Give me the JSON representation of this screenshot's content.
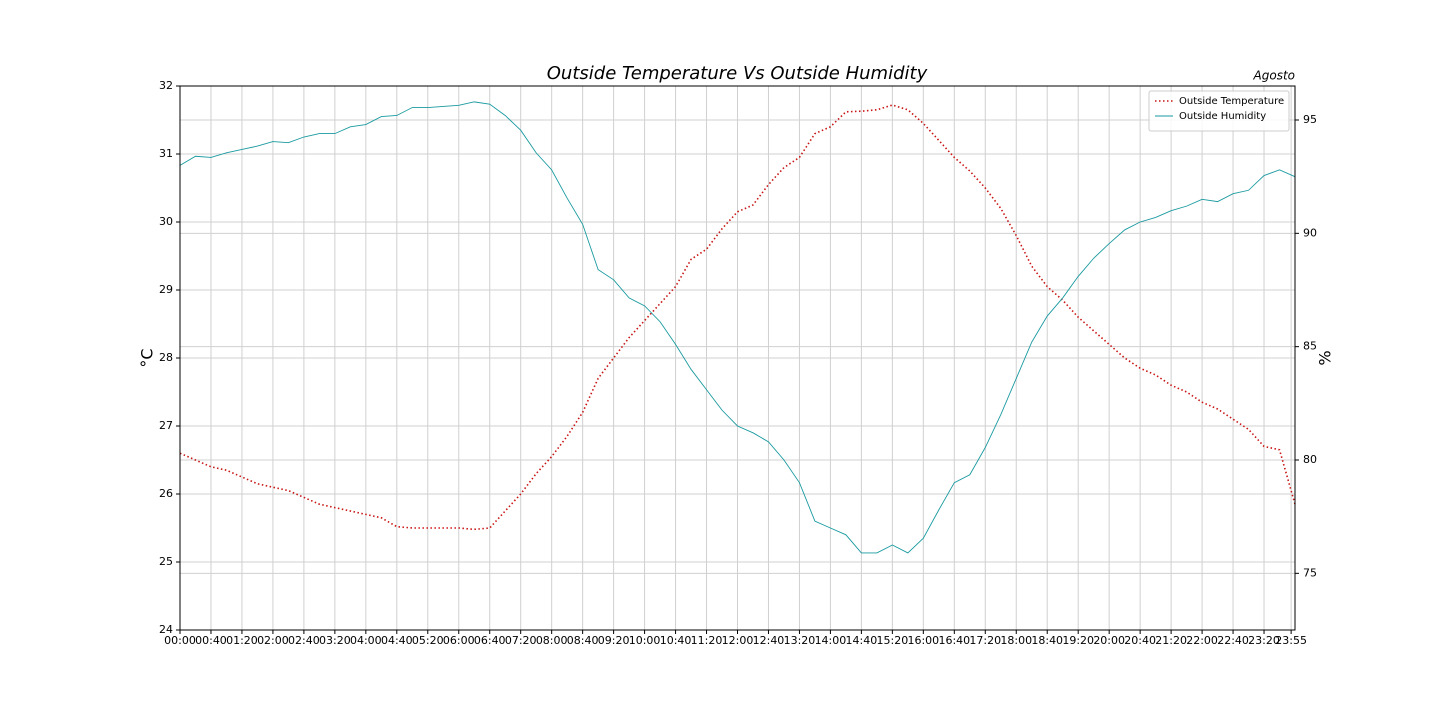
{
  "chart_data": {
    "type": "line",
    "title": "Outside Temperature Vs Outside Humidity",
    "annotation": "Agosto",
    "ylabel": "°C",
    "y2label": "%",
    "x": [
      0,
      20,
      40,
      60,
      80,
      100,
      120,
      140,
      160,
      180,
      200,
      220,
      240,
      260,
      280,
      300,
      320,
      340,
      360,
      380,
      400,
      420,
      440,
      460,
      480,
      500,
      520,
      540,
      560,
      580,
      600,
      620,
      640,
      660,
      680,
      700,
      720,
      740,
      760,
      780,
      800,
      820,
      840,
      860,
      880,
      900,
      920,
      940,
      960,
      980,
      1000,
      1020,
      1040,
      1060,
      1080,
      1100,
      1120,
      1140,
      1160,
      1180,
      1200,
      1220,
      1240,
      1260,
      1280,
      1300,
      1320,
      1340,
      1360,
      1380,
      1400,
      1420,
      1440
    ],
    "series": [
      {
        "name": "Outside Temperature",
        "color": "#c81414",
        "dash": "dotted",
        "values": [
          26.6,
          26.5,
          26.4,
          26.35,
          26.25,
          26.15,
          26.1,
          26.05,
          25.95,
          25.85,
          25.8,
          25.75,
          25.7,
          25.65,
          25.52,
          25.5,
          25.5,
          25.5,
          25.5,
          25.48,
          25.5,
          25.75,
          26.0,
          26.3,
          26.55,
          26.85,
          27.2,
          27.7,
          28.0,
          28.3,
          28.55,
          28.8,
          29.05,
          29.45,
          29.6,
          29.9,
          30.15,
          30.25,
          30.55,
          30.8,
          30.95,
          31.3,
          31.4,
          31.62,
          31.63,
          31.65,
          31.72,
          31.65,
          31.45,
          31.2,
          30.95,
          30.75,
          30.5,
          30.2,
          29.8,
          29.35,
          29.05,
          28.85,
          28.6,
          28.4,
          28.2,
          28.0,
          27.85,
          27.75,
          27.6,
          27.5,
          27.35,
          27.25,
          27.1,
          26.95,
          26.7,
          26.65,
          25.85
        ]
      },
      {
        "name": "Outside Humidity",
        "color": "#1a9aa0",
        "axis": "y2",
        "dash": "solid",
        "values": [
          93.0,
          93.4,
          93.35,
          93.55,
          93.7,
          93.85,
          94.05,
          94.0,
          94.25,
          94.4,
          94.4,
          94.7,
          94.8,
          95.15,
          95.2,
          95.55,
          95.55,
          95.6,
          95.65,
          95.8,
          95.7,
          95.2,
          94.55,
          93.55,
          92.8,
          91.55,
          90.4,
          88.4,
          87.95,
          87.15,
          86.8,
          86.1,
          85.1,
          84.0,
          83.1,
          82.2,
          81.5,
          81.2,
          80.8,
          80.0,
          79.0,
          77.3,
          77.0,
          76.7,
          75.9,
          75.9,
          76.25,
          75.9,
          76.55,
          77.8,
          79.0,
          79.35,
          80.55,
          82.0,
          83.6,
          85.2,
          86.35,
          87.15,
          88.1,
          88.9,
          89.55,
          90.15,
          90.5,
          90.7,
          91.0,
          91.2,
          91.5,
          91.4,
          91.75,
          91.9,
          92.55,
          92.8,
          92.5
        ]
      }
    ],
    "xlim": [
      0,
      1440
    ],
    "xticks": [
      {
        "value": 0,
        "label": "00:00"
      },
      {
        "value": 40,
        "label": "00:40"
      },
      {
        "value": 80,
        "label": "01:20"
      },
      {
        "value": 120,
        "label": "02:00"
      },
      {
        "value": 160,
        "label": "02:40"
      },
      {
        "value": 200,
        "label": "03:20"
      },
      {
        "value": 240,
        "label": "04:00"
      },
      {
        "value": 280,
        "label": "04:40"
      },
      {
        "value": 320,
        "label": "05:20"
      },
      {
        "value": 360,
        "label": "06:00"
      },
      {
        "value": 400,
        "label": "06:40"
      },
      {
        "value": 440,
        "label": "07:20"
      },
      {
        "value": 480,
        "label": "08:00"
      },
      {
        "value": 520,
        "label": "08:40"
      },
      {
        "value": 560,
        "label": "09:20"
      },
      {
        "value": 600,
        "label": "10:00"
      },
      {
        "value": 640,
        "label": "10:40"
      },
      {
        "value": 680,
        "label": "11:20"
      },
      {
        "value": 720,
        "label": "12:00"
      },
      {
        "value": 760,
        "label": "12:40"
      },
      {
        "value": 800,
        "label": "13:20"
      },
      {
        "value": 840,
        "label": "14:00"
      },
      {
        "value": 880,
        "label": "14:40"
      },
      {
        "value": 920,
        "label": "15:20"
      },
      {
        "value": 960,
        "label": "16:00"
      },
      {
        "value": 1000,
        "label": "16:40"
      },
      {
        "value": 1040,
        "label": "17:20"
      },
      {
        "value": 1080,
        "label": "18:00"
      },
      {
        "value": 1120,
        "label": "18:40"
      },
      {
        "value": 1160,
        "label": "19:20"
      },
      {
        "value": 1200,
        "label": "20:00"
      },
      {
        "value": 1240,
        "label": "20:40"
      },
      {
        "value": 1280,
        "label": "21:20"
      },
      {
        "value": 1320,
        "label": "22:00"
      },
      {
        "value": 1360,
        "label": "22:40"
      },
      {
        "value": 1400,
        "label": "23:20"
      },
      {
        "value": 1435,
        "label": "23:55"
      }
    ],
    "ylim": [
      24,
      32
    ],
    "yticks": [
      24,
      25,
      26,
      27,
      28,
      29,
      30,
      31,
      32
    ],
    "y2lim": [
      72.5,
      96.5
    ],
    "y2ticks": [
      75,
      80,
      85,
      90,
      95
    ],
    "grid": true,
    "legend": "upper right"
  }
}
